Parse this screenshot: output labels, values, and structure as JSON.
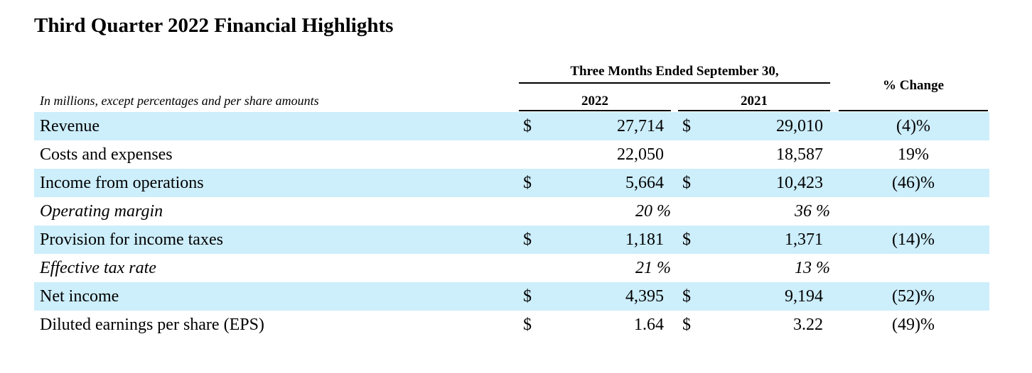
{
  "title": "Third Quarter 2022 Financial Highlights",
  "header": {
    "period_group": "Three Months Ended September 30,",
    "year_current": "2022",
    "year_prior": "2021",
    "change": "% Change",
    "units_note": "In millions, except percentages and per share amounts"
  },
  "rows": [
    {
      "label": "Revenue",
      "dollar_current": "$",
      "current": "27,714",
      "dollar_prior": "$",
      "prior": "29,010",
      "change": "(4)%"
    },
    {
      "label": "Costs and expenses",
      "current": "22,050",
      "prior": "18,587",
      "change": "19%"
    },
    {
      "label": "Income from operations",
      "dollar_current": "$",
      "current": "5,664",
      "dollar_prior": "$",
      "prior": "10,423",
      "change": "(46)%"
    },
    {
      "label": "Operating margin",
      "current": "20 %",
      "prior": "36 %"
    },
    {
      "label": "Provision for income taxes",
      "dollar_current": "$",
      "current": "1,181",
      "dollar_prior": "$",
      "prior": "1,371",
      "change": "(14)%"
    },
    {
      "label": "Effective tax rate",
      "current": "21 %",
      "prior": "13 %"
    },
    {
      "label": "Net income",
      "dollar_current": "$",
      "current": "4,395",
      "dollar_prior": "$",
      "prior": "9,194",
      "change": "(52)%"
    },
    {
      "label": "Diluted earnings per share (EPS)",
      "dollar_current": "$",
      "current": "1.64",
      "dollar_prior": "$",
      "prior": "3.22",
      "change": "(49)%"
    }
  ],
  "colors": {
    "row_shade": "#cdeefb",
    "text": "#000000"
  }
}
